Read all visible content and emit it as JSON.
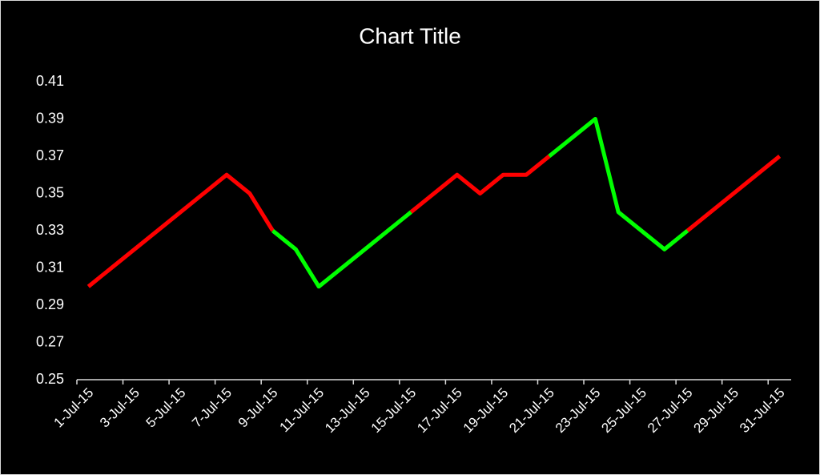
{
  "chart_data": {
    "type": "line",
    "title": "Chart Title",
    "categories": [
      "1-Jul-15",
      null,
      "3-Jul-15",
      null,
      "5-Jul-15",
      null,
      "7-Jul-15",
      null,
      "9-Jul-15",
      null,
      "11-Jul-15",
      null,
      "13-Jul-15",
      null,
      "15-Jul-15",
      null,
      "17-Jul-15",
      null,
      "19-Jul-15",
      null,
      "21-Jul-15",
      null,
      "23-Jul-15",
      null,
      "25-Jul-15",
      null,
      "27-Jul-15",
      null,
      "29-Jul-15",
      null,
      "31-Jul-15"
    ],
    "series": [
      {
        "color": "#ff0000",
        "values": [
          0.3,
          0.31,
          0.32,
          0.33,
          0.34,
          0.35,
          0.36,
          0.35,
          0.33,
          null,
          null,
          null,
          null,
          null,
          0.34,
          0.35,
          0.36,
          0.35,
          0.36,
          0.36,
          0.37,
          null,
          null,
          null,
          null,
          null,
          0.33,
          0.34,
          0.35,
          0.36,
          0.37
        ]
      },
      {
        "color": "#00ff00",
        "values": [
          null,
          null,
          null,
          null,
          null,
          null,
          null,
          null,
          0.33,
          0.32,
          0.3,
          0.31,
          0.32,
          0.33,
          0.34,
          null,
          null,
          null,
          null,
          null,
          0.37,
          0.38,
          0.39,
          0.34,
          0.33,
          0.32,
          0.33,
          null,
          null,
          null,
          null
        ]
      }
    ],
    "ylim": [
      0.25,
      0.41
    ],
    "yticks": [
      0.25,
      0.27,
      0.29,
      0.31,
      0.33,
      0.35,
      0.37,
      0.39,
      0.41
    ],
    "grid": false
  }
}
